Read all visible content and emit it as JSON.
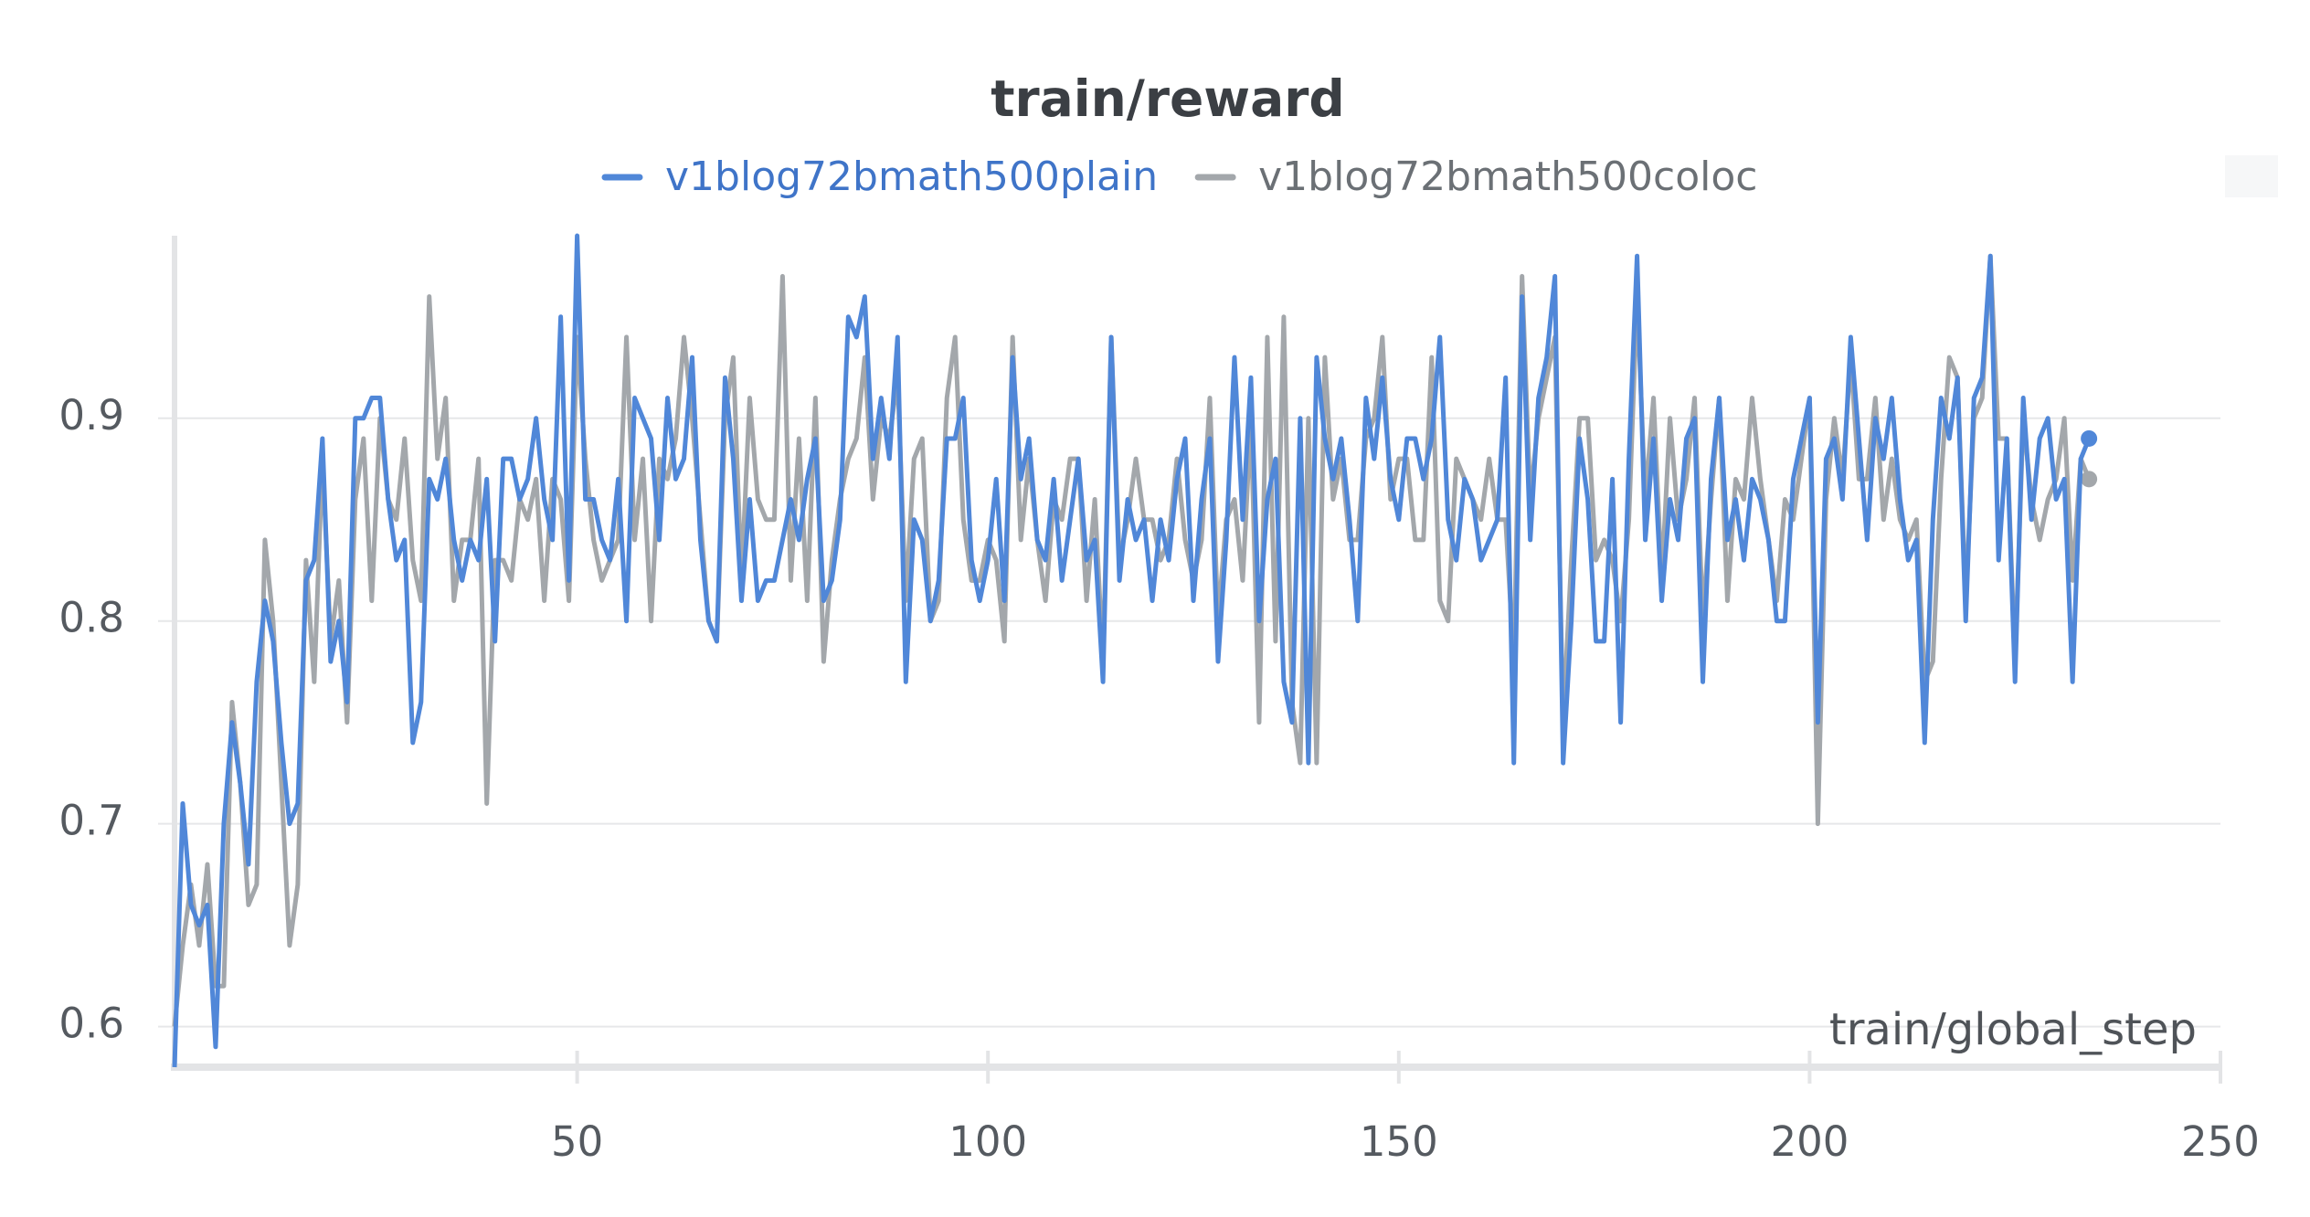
{
  "chart_data": {
    "type": "line",
    "title": "train/reward",
    "x_label": "train/global_step",
    "xlim": [
      1,
      250
    ],
    "xticks": [
      50,
      100,
      150,
      200,
      250
    ],
    "ylim": [
      0.58,
      0.99
    ],
    "yticks": [
      0.6,
      0.7,
      0.8,
      0.9
    ],
    "grid": true,
    "legend": "top",
    "x": [
      1,
      2,
      3,
      4,
      5,
      6,
      7,
      8,
      9,
      10,
      11,
      12,
      13,
      14,
      15,
      16,
      17,
      18,
      19,
      20,
      21,
      22,
      23,
      24,
      25,
      26,
      27,
      28,
      29,
      30,
      31,
      32,
      33,
      34,
      35,
      36,
      37,
      38,
      39,
      40,
      41,
      42,
      43,
      44,
      45,
      46,
      47,
      48,
      49,
      50,
      51,
      52,
      53,
      54,
      55,
      56,
      57,
      58,
      59,
      60,
      61,
      62,
      63,
      64,
      65,
      66,
      67,
      68,
      69,
      70,
      71,
      72,
      73,
      74,
      75,
      76,
      77,
      78,
      79,
      80,
      81,
      82,
      83,
      84,
      85,
      86,
      87,
      88,
      89,
      90,
      91,
      92,
      93,
      94,
      95,
      96,
      97,
      98,
      99,
      100,
      101,
      102,
      103,
      104,
      105,
      106,
      107,
      108,
      109,
      110,
      111,
      112,
      113,
      114,
      115,
      116,
      117,
      118,
      119,
      120,
      121,
      122,
      123,
      124,
      125,
      126,
      127,
      128,
      129,
      130,
      131,
      132,
      133,
      134,
      135,
      136,
      137,
      138,
      139,
      140,
      141,
      142,
      143,
      144,
      145,
      146,
      147,
      148,
      149,
      150,
      151,
      152,
      153,
      154,
      155,
      156,
      157,
      158,
      159,
      160,
      161,
      162,
      163,
      164,
      165,
      166,
      167,
      168,
      169,
      170,
      171,
      172,
      173,
      174,
      175,
      176,
      177,
      178,
      179,
      180,
      181,
      182,
      183,
      184,
      185,
      186,
      187,
      188,
      189,
      190,
      191,
      192,
      193,
      194,
      195,
      196,
      197,
      198,
      199,
      200,
      201,
      202,
      203,
      204,
      205,
      206,
      207,
      208,
      209,
      210,
      211,
      212,
      213,
      214,
      215,
      216,
      217,
      218,
      219,
      220,
      221,
      222,
      223,
      224,
      225,
      226,
      227,
      228,
      229,
      230,
      231,
      232,
      233,
      234
    ],
    "series": [
      {
        "name": "v1blog72bmath500plain",
        "color": "#5087d8",
        "values": [
          0.58,
          0.71,
          0.66,
          0.65,
          0.66,
          0.59,
          0.7,
          0.75,
          0.72,
          0.68,
          0.77,
          0.81,
          0.79,
          0.74,
          0.7,
          0.71,
          0.82,
          0.83,
          0.89,
          0.78,
          0.8,
          0.76,
          0.9,
          0.9,
          0.91,
          0.91,
          0.86,
          0.83,
          0.84,
          0.74,
          0.76,
          0.87,
          0.86,
          0.88,
          0.84,
          0.82,
          0.84,
          0.83,
          0.87,
          0.79,
          0.88,
          0.88,
          0.86,
          0.87,
          0.9,
          0.86,
          0.84,
          0.95,
          0.82,
          0.99,
          0.86,
          0.86,
          0.84,
          0.83,
          0.87,
          0.8,
          0.91,
          0.9,
          0.89,
          0.84,
          0.91,
          0.87,
          0.88,
          0.93,
          0.84,
          0.8,
          0.79,
          0.92,
          0.88,
          0.81,
          0.86,
          0.81,
          0.82,
          0.82,
          0.84,
          0.86,
          0.84,
          0.87,
          0.89,
          0.81,
          0.82,
          0.85,
          0.95,
          0.94,
          0.96,
          0.88,
          0.91,
          0.88,
          0.94,
          0.77,
          0.85,
          0.84,
          0.8,
          0.82,
          0.89,
          0.89,
          0.91,
          0.83,
          0.81,
          0.83,
          0.87,
          0.81,
          0.93,
          0.87,
          0.89,
          0.84,
          0.83,
          0.87,
          0.82,
          0.85,
          0.88,
          0.83,
          0.84,
          0.77,
          0.94,
          0.82,
          0.86,
          0.84,
          0.85,
          0.81,
          0.85,
          0.83,
          0.87,
          0.89,
          0.81,
          0.86,
          0.89,
          0.78,
          0.84,
          0.93,
          0.85,
          0.92,
          0.8,
          0.86,
          0.88,
          0.77,
          0.75,
          0.9,
          0.73,
          0.93,
          0.89,
          0.87,
          0.89,
          0.85,
          0.8,
          0.91,
          0.88,
          0.92,
          0.87,
          0.85,
          0.89,
          0.89,
          0.87,
          0.89,
          0.94,
          0.85,
          0.83,
          0.87,
          0.86,
          0.83,
          0.84,
          0.85,
          0.92,
          0.73,
          0.96,
          0.84,
          0.91,
          0.93,
          0.97,
          0.73,
          0.8,
          0.89,
          0.86,
          0.79,
          0.79,
          0.87,
          0.75,
          0.88,
          0.98,
          0.84,
          0.89,
          0.81,
          0.86,
          0.84,
          0.89,
          0.9,
          0.77,
          0.87,
          0.91,
          0.84,
          0.86,
          0.83,
          0.87,
          0.86,
          0.84,
          0.8,
          0.8,
          0.87,
          0.89,
          0.91,
          0.75,
          0.88,
          0.89,
          0.86,
          0.94,
          0.89,
          0.84,
          0.9,
          0.88,
          0.91,
          0.86,
          0.83,
          0.84,
          0.74,
          0.85,
          0.91,
          0.89,
          0.92,
          0.8,
          0.91,
          0.92,
          0.98,
          0.83,
          0.89,
          0.77,
          0.91,
          0.85,
          0.89,
          0.9,
          0.86,
          0.87,
          0.77,
          0.88,
          0.89
        ]
      },
      {
        "name": "v1blog72bmath500coloc",
        "color": "#a3a7ab",
        "values": [
          0.6,
          0.64,
          0.67,
          0.64,
          0.68,
          0.62,
          0.62,
          0.76,
          0.72,
          0.66,
          0.67,
          0.84,
          0.8,
          0.72,
          0.64,
          0.67,
          0.83,
          0.77,
          0.88,
          0.79,
          0.82,
          0.75,
          0.86,
          0.89,
          0.81,
          0.9,
          0.86,
          0.85,
          0.89,
          0.83,
          0.81,
          0.96,
          0.88,
          0.91,
          0.81,
          0.84,
          0.84,
          0.88,
          0.71,
          0.83,
          0.83,
          0.82,
          0.86,
          0.85,
          0.87,
          0.81,
          0.87,
          0.86,
          0.81,
          0.94,
          0.88,
          0.84,
          0.82,
          0.83,
          0.84,
          0.94,
          0.84,
          0.88,
          0.8,
          0.88,
          0.87,
          0.89,
          0.94,
          0.9,
          0.85,
          0.8,
          0.79,
          0.9,
          0.93,
          0.82,
          0.91,
          0.86,
          0.85,
          0.85,
          0.97,
          0.82,
          0.89,
          0.81,
          0.91,
          0.78,
          0.83,
          0.86,
          0.88,
          0.89,
          0.93,
          0.86,
          0.9,
          0.89,
          0.92,
          0.81,
          0.88,
          0.89,
          0.8,
          0.81,
          0.91,
          0.94,
          0.85,
          0.82,
          0.82,
          0.84,
          0.83,
          0.79,
          0.94,
          0.84,
          0.88,
          0.84,
          0.81,
          0.86,
          0.85,
          0.88,
          0.88,
          0.81,
          0.86,
          0.78,
          0.94,
          0.83,
          0.85,
          0.88,
          0.85,
          0.85,
          0.83,
          0.84,
          0.88,
          0.84,
          0.82,
          0.84,
          0.91,
          0.8,
          0.85,
          0.86,
          0.82,
          0.9,
          0.75,
          0.94,
          0.79,
          0.95,
          0.76,
          0.73,
          0.9,
          0.73,
          0.93,
          0.86,
          0.88,
          0.84,
          0.84,
          0.89,
          0.9,
          0.94,
          0.86,
          0.88,
          0.88,
          0.84,
          0.84,
          0.93,
          0.81,
          0.8,
          0.88,
          0.87,
          0.86,
          0.85,
          0.88,
          0.85,
          0.85,
          0.78,
          0.97,
          0.86,
          0.9,
          0.92,
          0.94,
          0.75,
          0.83,
          0.9,
          0.9,
          0.83,
          0.84,
          0.83,
          0.8,
          0.85,
          0.96,
          0.86,
          0.91,
          0.82,
          0.9,
          0.85,
          0.87,
          0.91,
          0.8,
          0.86,
          0.91,
          0.81,
          0.87,
          0.86,
          0.91,
          0.87,
          0.84,
          0.81,
          0.86,
          0.85,
          0.88,
          0.91,
          0.7,
          0.86,
          0.9,
          0.87,
          0.93,
          0.87,
          0.87,
          0.91,
          0.85,
          0.88,
          0.85,
          0.84,
          0.85,
          0.77,
          0.78,
          0.87,
          0.93,
          0.92,
          0.81,
          0.9,
          0.91,
          0.98,
          0.89,
          0.89,
          0.78,
          0.9,
          0.86,
          0.84,
          0.86,
          0.87,
          0.9,
          0.82,
          0.88,
          0.87
        ]
      }
    ]
  }
}
